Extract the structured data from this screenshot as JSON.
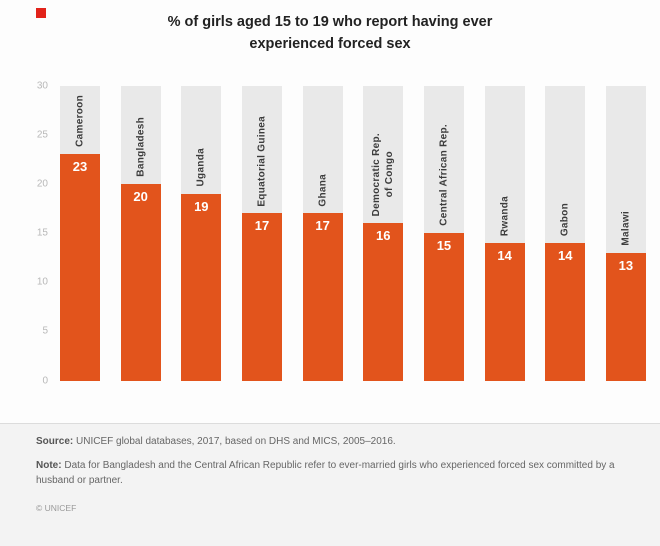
{
  "page": {
    "accent_red": "#e2231a",
    "canvas_bg": "#fdfdfd",
    "footer_bg": "#f3f3f3"
  },
  "chart_data": {
    "type": "bar",
    "title": "% of girls aged 15 to 19 who report having ever experienced forced sex",
    "categories": [
      "Cameroon",
      "Bangladesh",
      "Uganda",
      "Equatorial Guinea",
      "Ghana",
      "Democratic Rep.\nof Congo",
      "Central African Rep.",
      "Rwanda",
      "Gabon",
      "Malawi"
    ],
    "values": [
      23,
      20,
      19,
      17,
      17,
      16,
      15,
      14,
      14,
      13
    ],
    "xlabel": "",
    "ylabel": "",
    "ylim": [
      0,
      30
    ],
    "yticks": [
      0,
      5,
      10,
      15,
      20,
      25,
      30
    ],
    "grid": "off",
    "legend": "none",
    "bar_color": "#e2541c",
    "column_bg_color": "#e9e9e9",
    "value_label_color": "#ffffff",
    "tick_label_color": "#b8b8b8",
    "category_label_color": "#3c3c3c"
  },
  "footer": {
    "source_label": "Source:",
    "source_text": " UNICEF global databases, 2017, based on DHS and MICS, 2005–2016.",
    "note_label": "Note:",
    "note_text": " Data for Bangladesh and the Central African Republic refer to ever-married girls who experienced forced sex committed by a husband or partner.",
    "copyright": "© UNICEF"
  }
}
